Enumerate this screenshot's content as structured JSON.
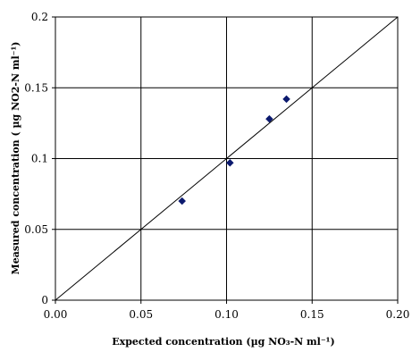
{
  "chart_data": {
    "type": "scatter",
    "title": "",
    "xlabel": "Expected concentration (µg NO₃-N ml⁻¹)",
    "ylabel": "Measured concentration ( µg NO2-N ml⁻¹)",
    "xlim": [
      0,
      0.2
    ],
    "ylim": [
      0,
      0.2
    ],
    "x_ticks": [
      "0.00",
      "0.05",
      "0.10",
      "0.15",
      "0.20"
    ],
    "y_ticks": [
      "0",
      "0.05",
      "0.1",
      "0.15",
      "0.2"
    ],
    "grid": true,
    "series": [
      {
        "marker": "diamond",
        "color": "#0c1a6e",
        "points": [
          {
            "x": 0.074,
            "y": 0.07
          },
          {
            "x": 0.102,
            "y": 0.097
          },
          {
            "x": 0.125,
            "y": 0.128
          },
          {
            "x": 0.135,
            "y": 0.142
          }
        ]
      }
    ],
    "reference_line": {
      "type": "identity",
      "from": [
        0,
        0
      ],
      "to": [
        0.2,
        0.2
      ],
      "color": "#000000"
    }
  }
}
